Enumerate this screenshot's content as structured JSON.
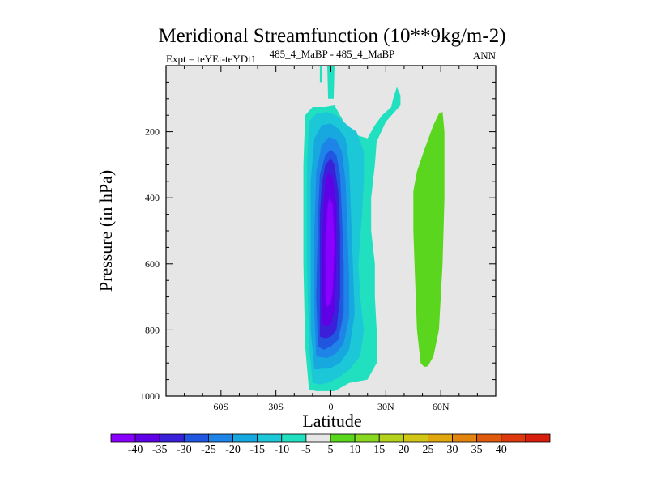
{
  "chart_data": {
    "type": "contour",
    "title": "Meridional Streamfunction (10**9kg/m-2)",
    "subtitle_left": "Expt = teYEt-teYDt1",
    "subtitle_center": "485_4_MaBP - 485_4_MaBP",
    "subtitle_right": "ANN",
    "xlabel": "Latitude",
    "ylabel": "Pressure (in hPa)",
    "xlim": [
      -90,
      90
    ],
    "ylim": [
      0,
      1000
    ],
    "y_inverted": true,
    "x_ticks": [
      {
        "value": -60,
        "label": "60S"
      },
      {
        "value": -30,
        "label": "30S"
      },
      {
        "value": 0,
        "label": "0"
      },
      {
        "value": 30,
        "label": "30N"
      },
      {
        "value": 60,
        "label": "60N"
      }
    ],
    "y_ticks": [
      {
        "value": 200,
        "label": "200"
      },
      {
        "value": 400,
        "label": "400"
      },
      {
        "value": 600,
        "label": "600"
      },
      {
        "value": 800,
        "label": "800"
      },
      {
        "value": 1000,
        "label": "1000"
      }
    ],
    "background_color": "#e6e6e6",
    "colorbar": {
      "colors": [
        "#8a00ff",
        "#5f00e6",
        "#3a20d8",
        "#2056e0",
        "#1f84e8",
        "#18a8e0",
        "#1cc8d8",
        "#20e0c0",
        "#e6e6e6",
        "#5ad61e",
        "#88d820",
        "#b4d21c",
        "#d2c616",
        "#e0a80e",
        "#e2840e",
        "#e05a0e",
        "#dc3a0e",
        "#d81e0c"
      ],
      "labels": [
        "-40",
        "-35",
        "-30",
        "-25",
        "-20",
        "-15",
        "-10",
        "-5",
        "5",
        "10",
        "15",
        "20",
        "25",
        "30",
        "35",
        "40"
      ]
    },
    "regions": [
      {
        "name": "cell-minus5",
        "value": -5,
        "color": "#20e0c0",
        "outline": [
          [
            -12,
            980
          ],
          [
            -14,
            850
          ],
          [
            -15,
            600
          ],
          [
            -15,
            300
          ],
          [
            -14,
            150
          ],
          [
            -10,
            125
          ],
          [
            -3,
            125
          ],
          [
            2,
            120
          ],
          [
            8,
            180
          ],
          [
            10,
            200
          ],
          [
            14,
            210
          ],
          [
            20,
            220
          ],
          [
            24,
            180
          ],
          [
            28,
            150
          ],
          [
            33,
            125
          ],
          [
            34,
            100
          ],
          [
            36,
            65
          ],
          [
            38,
            90
          ],
          [
            38,
            120
          ],
          [
            30,
            170
          ],
          [
            25,
            230
          ],
          [
            24,
            300
          ],
          [
            22,
            400
          ],
          [
            22,
            500
          ],
          [
            24,
            600
          ],
          [
            24,
            700
          ],
          [
            25,
            800
          ],
          [
            25,
            900
          ],
          [
            20,
            950
          ],
          [
            10,
            960
          ],
          [
            2,
            985
          ],
          [
            -3,
            985
          ],
          [
            -8,
            985
          ]
        ]
      },
      {
        "name": "cell-minus10",
        "value": -10,
        "color": "#1cc8d8",
        "outline": [
          [
            -10,
            960
          ],
          [
            -12,
            850
          ],
          [
            -13,
            600
          ],
          [
            -13,
            300
          ],
          [
            -12,
            170
          ],
          [
            -8,
            145
          ],
          [
            -2,
            140
          ],
          [
            3,
            150
          ],
          [
            10,
            185
          ],
          [
            14,
            200
          ],
          [
            18,
            260
          ],
          [
            18,
            350
          ],
          [
            17,
            450
          ],
          [
            15,
            600
          ],
          [
            16,
            700
          ],
          [
            18,
            800
          ],
          [
            16,
            880
          ],
          [
            10,
            920
          ],
          [
            4,
            945
          ],
          [
            -2,
            960
          ],
          [
            -6,
            965
          ]
        ]
      },
      {
        "name": "cell-minus15",
        "value": -15,
        "color": "#18a8e0",
        "outline": [
          [
            -9,
            920
          ],
          [
            -11,
            800
          ],
          [
            -11,
            600
          ],
          [
            -11,
            350
          ],
          [
            -9,
            220
          ],
          [
            -5,
            180
          ],
          [
            0,
            175
          ],
          [
            4,
            190
          ],
          [
            8,
            220
          ],
          [
            10,
            300
          ],
          [
            11,
            450
          ],
          [
            12,
            600
          ],
          [
            13,
            750
          ],
          [
            10,
            860
          ],
          [
            5,
            900
          ],
          [
            0,
            915
          ],
          [
            -5,
            915
          ]
        ]
      },
      {
        "name": "cell-minus20",
        "value": -20,
        "color": "#1f84e8",
        "outline": [
          [
            -8,
            880
          ],
          [
            -9,
            750
          ],
          [
            -9,
            500
          ],
          [
            -8,
            320
          ],
          [
            -5,
            240
          ],
          [
            -1,
            215
          ],
          [
            3,
            225
          ],
          [
            6,
            260
          ],
          [
            8,
            350
          ],
          [
            9,
            500
          ],
          [
            10,
            650
          ],
          [
            10,
            760
          ],
          [
            7,
            840
          ],
          [
            3,
            870
          ],
          [
            -2,
            885
          ]
        ]
      },
      {
        "name": "cell-minus25",
        "value": -25,
        "color": "#2056e0",
        "outline": [
          [
            -7,
            850
          ],
          [
            -8,
            700
          ],
          [
            -7,
            450
          ],
          [
            -6,
            330
          ],
          [
            -3,
            270
          ],
          [
            0,
            255
          ],
          [
            3,
            270
          ],
          [
            5,
            330
          ],
          [
            6,
            450
          ],
          [
            7,
            600
          ],
          [
            7,
            750
          ],
          [
            4,
            830
          ],
          [
            0,
            850
          ],
          [
            -4,
            860
          ]
        ]
      },
      {
        "name": "cell-minus30",
        "value": -30,
        "color": "#3a20d8",
        "outline": [
          [
            -6,
            820
          ],
          [
            -6,
            650
          ],
          [
            -6,
            450
          ],
          [
            -5,
            360
          ],
          [
            -3,
            300
          ],
          [
            0,
            280
          ],
          [
            2,
            300
          ],
          [
            4,
            380
          ],
          [
            5,
            500
          ],
          [
            5,
            700
          ],
          [
            3,
            800
          ],
          [
            0,
            820
          ],
          [
            -3,
            825
          ]
        ]
      },
      {
        "name": "cell-minus35",
        "value": -35,
        "color": "#5f00e6",
        "outline": [
          [
            -5,
            780
          ],
          [
            -5,
            600
          ],
          [
            -4,
            420
          ],
          [
            -3,
            350
          ],
          [
            -1,
            320
          ],
          [
            1,
            340
          ],
          [
            3,
            420
          ],
          [
            3,
            600
          ],
          [
            2,
            740
          ],
          [
            0,
            780
          ],
          [
            -2,
            790
          ]
        ]
      },
      {
        "name": "cell-minus40",
        "value": -40,
        "color": "#8a00ff",
        "outline": [
          [
            -3,
            710
          ],
          [
            -3,
            550
          ],
          [
            -2,
            440
          ],
          [
            -1,
            400
          ],
          [
            1,
            420
          ],
          [
            2,
            540
          ],
          [
            1,
            680
          ],
          [
            0,
            720
          ],
          [
            -2,
            730
          ]
        ]
      },
      {
        "name": "strip-minus5-top",
        "value": -5,
        "color": "#20e0c0",
        "outline": [
          [
            -6,
            0
          ],
          [
            -5,
            0
          ],
          [
            -5,
            50
          ],
          [
            -6,
            50
          ]
        ]
      },
      {
        "name": "strip-minus5-top-b",
        "value": -5,
        "color": "#20e0c0",
        "outline": [
          [
            -2,
            0
          ],
          [
            2,
            0
          ],
          [
            1.5,
            100
          ],
          [
            -1.5,
            100
          ]
        ]
      },
      {
        "name": "cell-plus5",
        "value": 5,
        "color": "#5ad61e",
        "outline": [
          [
            49,
            900
          ],
          [
            47,
            800
          ],
          [
            46,
            650
          ],
          [
            45,
            500
          ],
          [
            45,
            380
          ],
          [
            47,
            320
          ],
          [
            51,
            255
          ],
          [
            56,
            180
          ],
          [
            59,
            145
          ],
          [
            61,
            140
          ],
          [
            62,
            200
          ],
          [
            62,
            400
          ],
          [
            61,
            600
          ],
          [
            59,
            800
          ],
          [
            56,
            880
          ],
          [
            53,
            910
          ],
          [
            51,
            912
          ]
        ]
      }
    ]
  }
}
